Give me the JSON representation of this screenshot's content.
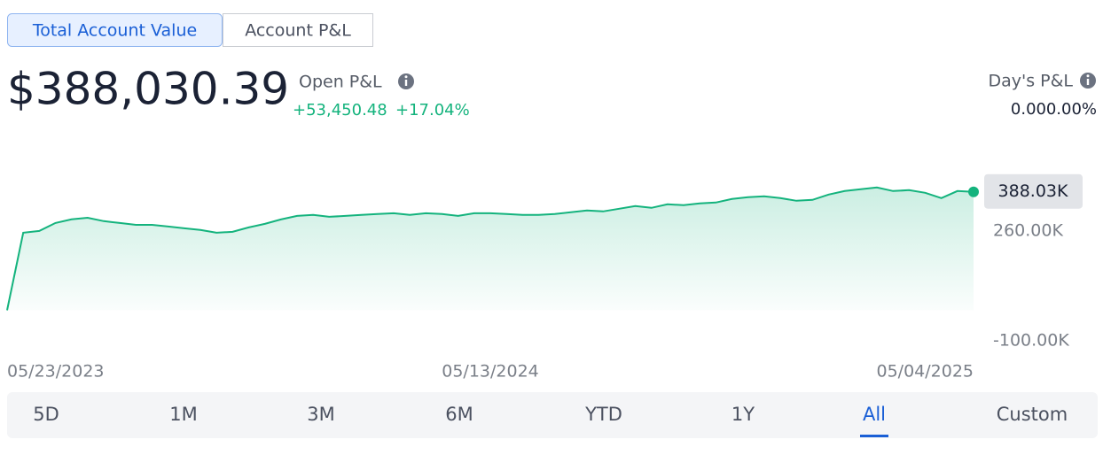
{
  "tabs": [
    {
      "label": "Total Account Value",
      "active": true
    },
    {
      "label": "Account P&L",
      "active": false
    }
  ],
  "account_value": "$388,030.39",
  "open_pnl": {
    "label": "Open P&L",
    "amount": "+53,450.48",
    "percent": "+17.04%"
  },
  "days_pnl": {
    "label": "Day's P&L",
    "amount": "0.00",
    "percent": "0.00%"
  },
  "chart_data": {
    "type": "area",
    "color": "#14b37d",
    "values": [
      0,
      254000,
      260000,
      286000,
      298000,
      303000,
      292000,
      286000,
      280000,
      280000,
      274500,
      268700,
      263000,
      254000,
      257000,
      271600,
      283200,
      297700,
      309300,
      312300,
      306400,
      309300,
      312300,
      315200,
      318000,
      312300,
      318000,
      315200,
      309300,
      318000,
      318000,
      315200,
      312300,
      312300,
      315200,
      321000,
      326800,
      323900,
      332600,
      341300,
      335500,
      347100,
      344200,
      350000,
      352900,
      364500,
      370400,
      373200,
      367400,
      358700,
      361600,
      379000,
      390600,
      396400,
      402200,
      390600,
      393500,
      384800,
      367400,
      390600,
      388030
    ],
    "xlim": [
      0,
      60
    ],
    "xticks": [
      {
        "value": 0,
        "label": "05/23/2023"
      },
      {
        "value": 30,
        "label": "05/13/2024"
      },
      {
        "value": 60,
        "label": "05/04/2025"
      }
    ],
    "ylim": [
      -100000,
      480000
    ],
    "yticks": [
      {
        "value": 260000,
        "label": "260.00K"
      },
      {
        "value": -100000,
        "label": "-100.00K"
      }
    ],
    "current": {
      "value": 388030,
      "label": "388.03K"
    }
  },
  "ranges": [
    {
      "label": "5D",
      "active": false
    },
    {
      "label": "1M",
      "active": false
    },
    {
      "label": "3M",
      "active": false
    },
    {
      "label": "6M",
      "active": false
    },
    {
      "label": "YTD",
      "active": false
    },
    {
      "label": "1Y",
      "active": false
    },
    {
      "label": "All",
      "active": true
    },
    {
      "label": "Custom",
      "active": false
    }
  ]
}
